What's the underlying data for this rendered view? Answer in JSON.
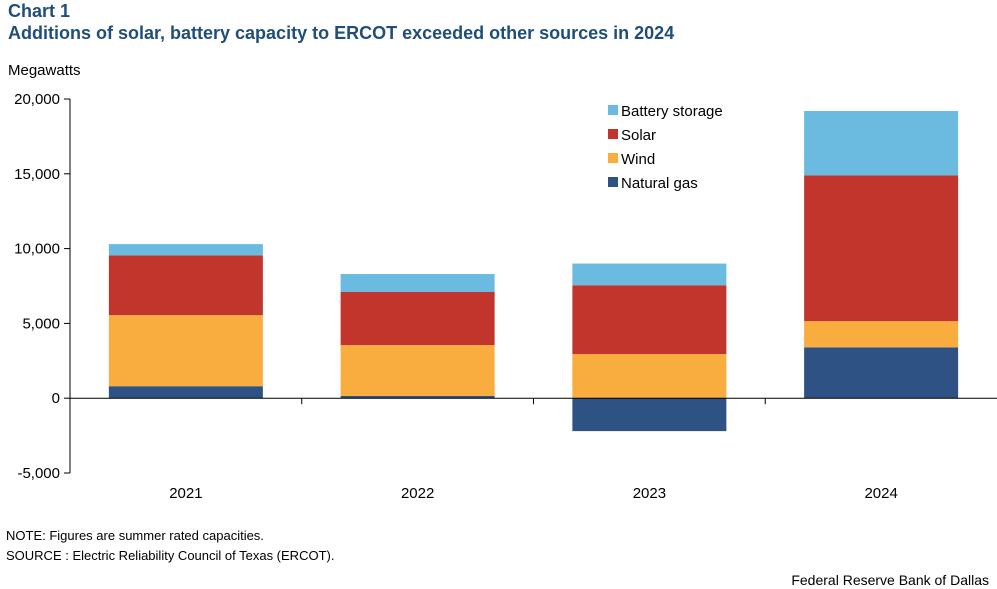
{
  "header": {
    "chart_label": "Chart 1",
    "title": "Additions of solar, battery capacity to ERCOT exceeded other sources in 2024"
  },
  "footer": {
    "note": "NOTE: Figures are summer rated capacities.",
    "source": "SOURCE : Electric Reliability  Council of Texas (ERCOT).",
    "credit": "Federal Reserve Bank of Dallas"
  },
  "chart_data": {
    "type": "bar",
    "stacked": true,
    "title": "Additions of solar, battery capacity to ERCOT exceeded other sources in 2024",
    "ylabel": "Megawatts",
    "xlabel": "",
    "categories": [
      "2021",
      "2022",
      "2023",
      "2024"
    ],
    "ylim": [
      -5000,
      20000
    ],
    "yticks": [
      20000,
      15000,
      10000,
      5000,
      0,
      -5000
    ],
    "ytick_labels": [
      "20,000",
      "15,000",
      "10,000",
      "5,000",
      "0",
      "-5,000"
    ],
    "series": [
      {
        "name": "Natural gas",
        "color": "#2e5283",
        "values": [
          800,
          150,
          -2200,
          3400
        ]
      },
      {
        "name": "Wind",
        "color": "#f9ad3f",
        "values": [
          4750,
          3400,
          2950,
          1750
        ]
      },
      {
        "name": "Solar",
        "color": "#c1352d",
        "values": [
          4000,
          3550,
          4600,
          9750
        ]
      },
      {
        "name": "Battery storage",
        "color": "#6bbbe0",
        "values": [
          750,
          1200,
          1450,
          4300
        ]
      }
    ],
    "legend": {
      "position": "top-right",
      "order": [
        "Battery storage",
        "Solar",
        "Wind",
        "Natural gas"
      ]
    },
    "grid": false
  }
}
